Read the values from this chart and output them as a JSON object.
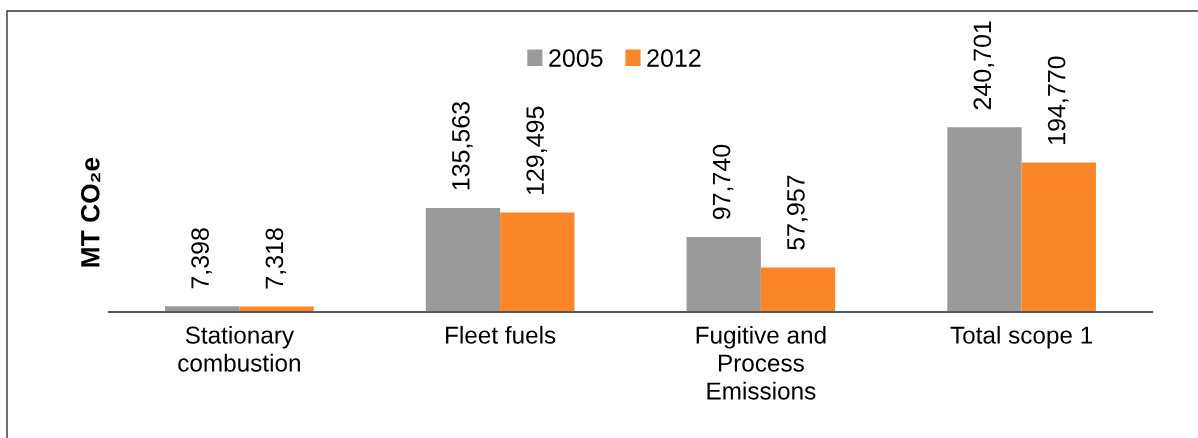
{
  "chart_data": {
    "type": "bar",
    "ylabel": "MT CO₂e",
    "categories": [
      "Stationary\ncombustion",
      "Fleet fuels",
      "Fugitive and\nProcess\nEmissions",
      "Total scope 1"
    ],
    "series": [
      {
        "name": "2005",
        "color": "#9a9a9a",
        "values": [
          7398,
          135563,
          97740,
          240701
        ],
        "value_labels": [
          "7,398",
          "135,563",
          "97,740",
          "240,701"
        ]
      },
      {
        "name": "2012",
        "color": "#fb8627",
        "values": [
          7318,
          129495,
          57957,
          194770
        ],
        "value_labels": [
          "7,318",
          "129,495",
          "57,957",
          "194,770"
        ]
      }
    ],
    "legend": "top",
    "grid": false,
    "tick_labels": "x"
  }
}
